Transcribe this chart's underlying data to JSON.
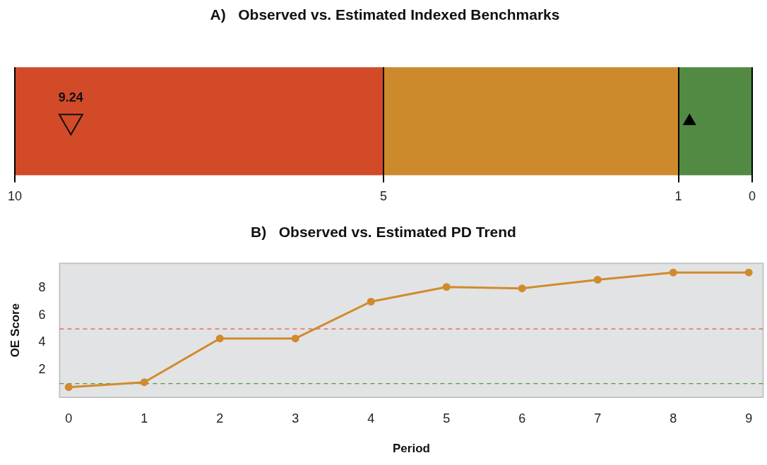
{
  "chart_data": [
    {
      "type": "bar",
      "orientation": "horizontal",
      "stacked": true,
      "title": "A)   Observed vs. Estimated Indexed Benchmarks",
      "categories": [
        null
      ],
      "xlim": [
        10,
        0
      ],
      "xticks": [
        10,
        5,
        1,
        0
      ],
      "grid": "x",
      "legend": false,
      "marker": "triangle",
      "series": [
        {
          "values": [
            1
          ],
          "color": "#528a44"
        },
        {
          "values": [
            4
          ],
          "color": "#cd8a2c"
        },
        {
          "values": [
            5
          ],
          "color": "#d34a29"
        },
        {
          "type": "scatter",
          "values": [
            9.24
          ],
          "value_labels": [
            "9.24"
          ],
          "color": "#d34a29"
        },
        {
          "type": "scatter",
          "values": [
            0.85
          ],
          "color": "#000000"
        }
      ]
    },
    {
      "type": "line",
      "title": "B)   Observed vs. Estimated PD Trend",
      "xlabel": "Period",
      "ylabel": "OE Score",
      "xlim": [
        -0.12,
        9.19
      ],
      "xticks": [
        0,
        1,
        2,
        3,
        4,
        5,
        6,
        7,
        8,
        9
      ],
      "ylim": [
        0,
        9.8
      ],
      "yticks": [
        2,
        4,
        6,
        8
      ],
      "grid": false,
      "legend": false,
      "marker": "circle",
      "line_style": "solid",
      "x": [
        0,
        1,
        2,
        3,
        4,
        5,
        6,
        7,
        8,
        9
      ],
      "series": [
        {
          "values": [
            0.74,
            1.1,
            4.3,
            4.3,
            7.0,
            8.07,
            7.97,
            8.6,
            9.13,
            9.13
          ],
          "color": "#d08b2c"
        }
      ],
      "ref_lines": [
        {
          "axis": "y",
          "value": 5,
          "color": "#e8574a",
          "line_style": "dashed"
        },
        {
          "axis": "y",
          "value": 1,
          "color": "#4f9a3a",
          "line_style": "dashed"
        }
      ]
    }
  ]
}
